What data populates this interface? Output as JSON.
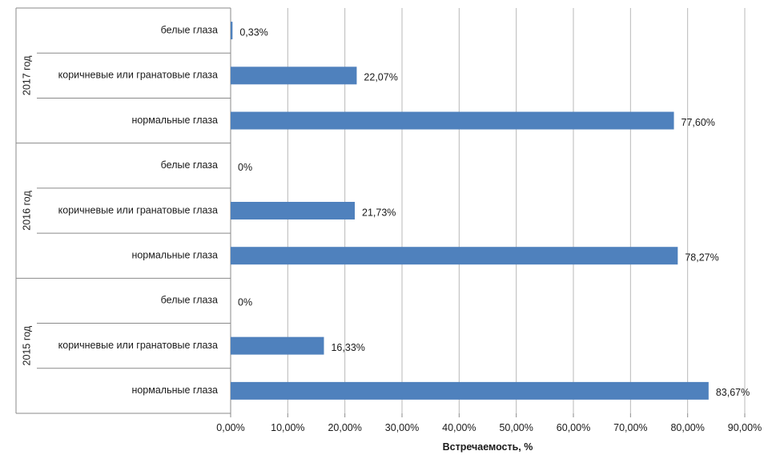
{
  "chart_data": {
    "type": "bar",
    "orientation": "horizontal",
    "xlabel": "Встречаемость, %",
    "xlim": [
      0,
      90
    ],
    "x_ticks": [
      "0,00%",
      "10,00%",
      "20,00%",
      "30,00%",
      "40,00%",
      "50,00%",
      "60,00%",
      "70,00%",
      "80,00%",
      "90,00%"
    ],
    "grid": "vertical",
    "bar_color": "#4f81bd",
    "groups": [
      {
        "label": "2017 год",
        "bars": [
          {
            "category": "белые глаза",
            "value": 0.33,
            "value_label": "0,33%"
          },
          {
            "category": "коричневые или гранатовые глаза",
            "value": 22.07,
            "value_label": "22,07%"
          },
          {
            "category": "нормальные глаза",
            "value": 77.6,
            "value_label": "77,60%"
          }
        ]
      },
      {
        "label": "2016 год",
        "bars": [
          {
            "category": "белые глаза",
            "value": 0,
            "value_label": "0%"
          },
          {
            "category": "коричневые или гранатовые глаза",
            "value": 21.73,
            "value_label": "21,73%"
          },
          {
            "category": "нормальные глаза",
            "value": 78.27,
            "value_label": "78,27%"
          }
        ]
      },
      {
        "label": "2015 год",
        "bars": [
          {
            "category": "белые глаза",
            "value": 0,
            "value_label": "0%"
          },
          {
            "category": "коричневые или гранатовые глаза",
            "value": 16.33,
            "value_label": "16,33%"
          },
          {
            "category": "нормальные глаза",
            "value": 83.67,
            "value_label": "83,67%"
          }
        ]
      }
    ]
  }
}
